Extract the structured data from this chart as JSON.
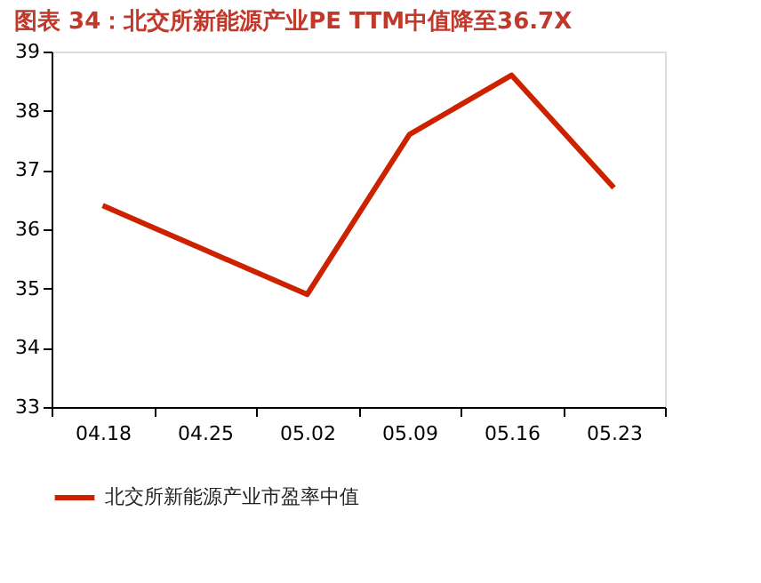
{
  "chart_data": {
    "type": "line",
    "title": "图表 34：北交所新能源产业PE TTM中值降至36.7X",
    "categories": [
      "04.18",
      "04.25",
      "05.02",
      "05.09",
      "05.16",
      "05.23"
    ],
    "series": [
      {
        "name": "北交所新能源产业市盈率中值",
        "color": "#cc2200",
        "values": [
          36.4,
          35.65,
          34.9,
          37.6,
          38.6,
          36.7
        ]
      }
    ],
    "ylim": [
      33,
      39
    ],
    "yticks": [
      33,
      34,
      35,
      36,
      37,
      38,
      39
    ],
    "grid": false,
    "legend": "bottom",
    "marker": "none",
    "line_style": "solid"
  }
}
